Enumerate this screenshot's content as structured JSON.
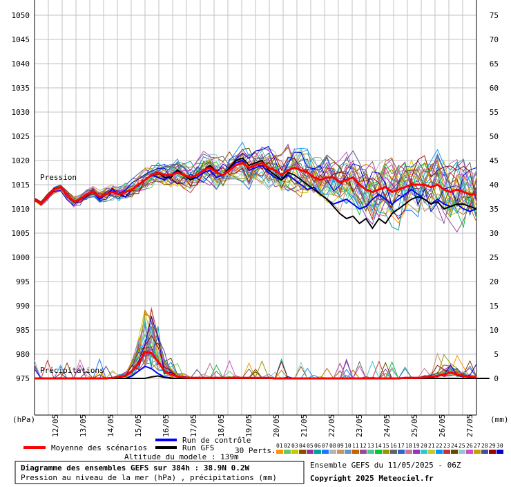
{
  "chart_data": {
    "type": "line",
    "y_left_label": "(hPa)",
    "y_right_label": "(mm)",
    "y_left_ticks": [
      975,
      980,
      985,
      990,
      995,
      1000,
      1005,
      1010,
      1015,
      1020,
      1025,
      1030,
      1035,
      1040,
      1045,
      1050
    ],
    "y_right_ticks": [
      0,
      5,
      10,
      15,
      20,
      25,
      30,
      35,
      40,
      45,
      50,
      55,
      60,
      65,
      70,
      75
    ],
    "x_ticks": [
      "12/05",
      "13/05",
      "14/05",
      "15/05",
      "16/05",
      "17/05",
      "18/05",
      "19/05",
      "20/05",
      "21/05",
      "22/05",
      "23/05",
      "24/05",
      "25/05",
      "26/05",
      "27/05"
    ],
    "xlim": [
      0,
      384
    ],
    "ylim_pressure": [
      975,
      1050
    ],
    "ylim_precip": [
      0,
      75
    ],
    "annotations": {
      "pressure": "Pression",
      "precip": "Précipitations"
    },
    "pressure_mean": [
      1012,
      1011,
      1012.5,
      1014,
      1014.5,
      1013,
      1011.5,
      1012,
      1013,
      1013.5,
      1012.5,
      1013,
      1013.5,
      1013,
      1013.5,
      1014,
      1015,
      1016,
      1017,
      1017.5,
      1017,
      1017,
      1017.5,
      1017,
      1016.5,
      1017,
      1018,
      1018.5,
      1017.5,
      1017,
      1018,
      1019,
      1019.5,
      1018.5,
      1019,
      1019.5,
      1018.5,
      1018,
      1017,
      1018,
      1018.5,
      1018,
      1017.5,
      1016.5,
      1016,
      1016.5,
      1016.5,
      1015.5,
      1016,
      1016.5,
      1015,
      1014,
      1013.5,
      1014,
      1014.5,
      1013.5,
      1014,
      1014.5,
      1015,
      1015,
      1015,
      1014.5,
      1015,
      1014,
      1013.5,
      1014,
      1013.5,
      1013,
      1013
    ],
    "pressure_control": [
      1012,
      1011,
      1012.5,
      1014,
      1014.5,
      1013,
      1011.5,
      1012,
      1013,
      1013.5,
      1012,
      1013,
      1014,
      1013,
      1012.5,
      1014,
      1015,
      1016,
      1017,
      1016.5,
      1016,
      1017,
      1018,
      1017,
      1016,
      1016.5,
      1017.5,
      1018,
      1016.5,
      1017,
      1018.5,
      1019.5,
      1020,
      1018,
      1018.5,
      1019,
      1017.5,
      1016.5,
      1016,
      1017,
      1016,
      1015,
      1014,
      1014.5,
      1013,
      1012,
      1011,
      1011.5,
      1012,
      1011,
      1010,
      1010.5,
      1012,
      1013,
      1012,
      1011,
      1012,
      1013,
      1014,
      1013,
      1012,
      1011,
      1012,
      1011,
      1010.5,
      1011,
      1010,
      1009.5,
      1010
    ],
    "pressure_gfs": [
      1012,
      1011,
      1012.5,
      1014,
      1014.5,
      1013,
      1011.5,
      1012,
      1013,
      1013.5,
      1012.5,
      1013,
      1013.5,
      1013,
      1013.5,
      1014,
      1015,
      1016,
      1017,
      1017.5,
      1016.5,
      1016.5,
      1018,
      1017,
      1016,
      1017,
      1018,
      1019,
      1017.5,
      1017,
      1018.5,
      1020,
      1020.5,
      1019,
      1019.5,
      1020,
      1018,
      1017,
      1016,
      1017.5,
      1017,
      1016,
      1015,
      1014,
      1013,
      1012,
      1010.5,
      1009,
      1008,
      1008.5,
      1007,
      1008,
      1006,
      1008,
      1007,
      1009,
      1010,
      1011,
      1012,
      1012.5,
      1012,
      1011,
      1011.5,
      1010,
      1010.5,
      1011,
      1011,
      1010.5,
      1010
    ],
    "precip_mean": [
      0,
      0,
      0,
      0,
      0,
      0,
      0,
      0,
      0,
      0,
      0,
      0,
      0.1,
      0.3,
      0.5,
      1.5,
      3,
      5.5,
      5.2,
      3.5,
      1.5,
      0.8,
      0.4,
      0.2,
      0.1,
      0.1,
      0.1,
      0.1,
      0.1,
      0.1,
      0.1,
      0.1,
      0.1,
      0.1,
      0.1,
      0.1,
      0.1,
      0,
      0,
      0,
      0,
      0,
      0,
      0,
      0,
      0,
      0,
      0,
      0,
      0,
      0,
      0,
      0,
      0,
      0,
      0,
      0,
      0.1,
      0.1,
      0.1,
      0.2,
      0.3,
      0.5,
      0.8,
      1.2,
      0.8,
      0.5,
      0.3,
      0.2
    ],
    "precip_control": [
      0,
      0,
      0,
      0,
      0,
      0,
      0,
      0,
      0,
      0,
      0,
      0,
      0,
      0,
      0,
      0.5,
      1.5,
      2.5,
      2,
      1,
      0.3,
      0.1,
      0,
      0,
      0,
      0,
      0,
      0,
      0,
      0,
      0,
      0,
      0,
      0,
      0,
      0,
      0,
      0,
      0,
      0,
      0,
      0,
      0,
      0,
      0,
      0,
      0,
      0,
      0,
      0,
      0,
      0,
      0,
      0,
      0,
      0,
      0,
      0,
      0,
      0,
      0,
      0,
      0,
      0,
      0,
      0,
      0,
      0,
      0
    ],
    "precip_gfs": [
      0,
      0,
      0,
      0,
      0,
      0,
      0,
      0,
      0,
      0,
      0,
      0,
      0,
      0,
      0,
      0,
      0,
      0,
      0.3,
      0.5,
      0.2,
      0,
      0,
      0,
      0,
      0,
      0,
      0,
      0,
      0,
      0,
      0,
      0,
      0,
      0,
      0,
      0,
      0,
      0,
      0,
      0,
      0,
      0,
      0,
      0,
      0,
      0,
      0,
      0,
      0,
      0,
      0,
      0,
      0,
      0,
      0,
      0,
      0,
      0,
      0,
      0,
      0,
      0,
      0,
      0,
      0,
      0,
      0,
      0,
      0,
      0
    ],
    "perturbation_labels": [
      "01",
      "02",
      "03",
      "04",
      "05",
      "06",
      "07",
      "08",
      "09",
      "10",
      "11",
      "12",
      "13",
      "14",
      "15",
      "16",
      "17",
      "18",
      "19",
      "20",
      "21",
      "22",
      "23",
      "24",
      "25",
      "26",
      "27",
      "28",
      "29",
      "30"
    ],
    "perturbation_colors": [
      "#ff9600",
      "#64c864",
      "#c8c800",
      "#8c4b00",
      "#963296",
      "#00a0a0",
      "#1e78ff",
      "#b4b4b4",
      "#c89664",
      "#6496c8",
      "#c86400",
      "#964b96",
      "#4bc896",
      "#00c832",
      "#969600",
      "#646464",
      "#3264c8",
      "#c87896",
      "#9632c8",
      "#32c8c8",
      "#c8c832",
      "#0096ff",
      "#c83232",
      "#644b00",
      "#96c8c8",
      "#c850c8",
      "#c8a000",
      "#4b4b96",
      "#a00000",
      "#0000c8"
    ],
    "colors": {
      "mean": "#ff0000",
      "control": "#0000ff",
      "gfs": "#000000",
      "axis": "#000000",
      "grid": "#c0c0c0"
    }
  },
  "legend": {
    "mean": "Moyenne des scénarios",
    "control": "Run de contrôle",
    "gfs": "Run GFS",
    "perts": "30 Perts."
  },
  "info": {
    "altitude": "Altitude du modele : 139m",
    "title": "Diagramme des ensembles GEFS sur 384h : 38.9N 0.2W",
    "subtitle": "Pression au niveau de la mer (hPa) , précipitations (mm)",
    "run": "Ensemble GEFS du 11/05/2025 - 06Z",
    "copyright": "Copyright 2025 Meteociel.fr"
  }
}
